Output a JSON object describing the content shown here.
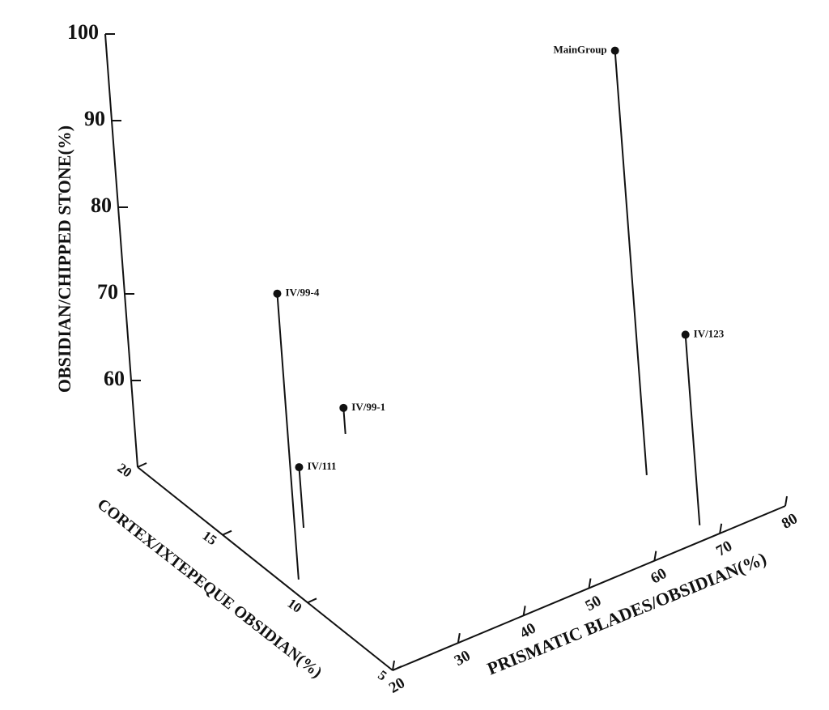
{
  "chart_data": {
    "type": "scatter3d",
    "xlabel": "PRISMATIC BLADES/OBSIDIAN(%)",
    "ylabel": "CORTEX/IXTEPEQUE OBSIDIAN(%)",
    "zlabel": "OBSIDIAN/CHIPPED STONE(%)",
    "labels": [
      "MainGroup",
      "IV/123",
      "IV/99-4",
      "IV/111",
      "IV/99-1"
    ],
    "x": [
      70,
      69,
      22,
      29,
      45
    ],
    "y": [
      9.3,
      5.8,
      11.3,
      13.7,
      17.4
    ],
    "z": [
      99,
      72,
      83,
      57,
      53
    ],
    "color": "#111111",
    "xlim": [
      20,
      80
    ],
    "ylim": [
      5,
      20
    ],
    "zlim": [
      50,
      100
    ],
    "xticks": [
      20,
      30,
      40,
      50,
      60,
      70,
      80
    ],
    "yticks": [
      5,
      10,
      15,
      20
    ],
    "zticks": [
      60,
      70,
      80,
      90,
      100
    ]
  }
}
